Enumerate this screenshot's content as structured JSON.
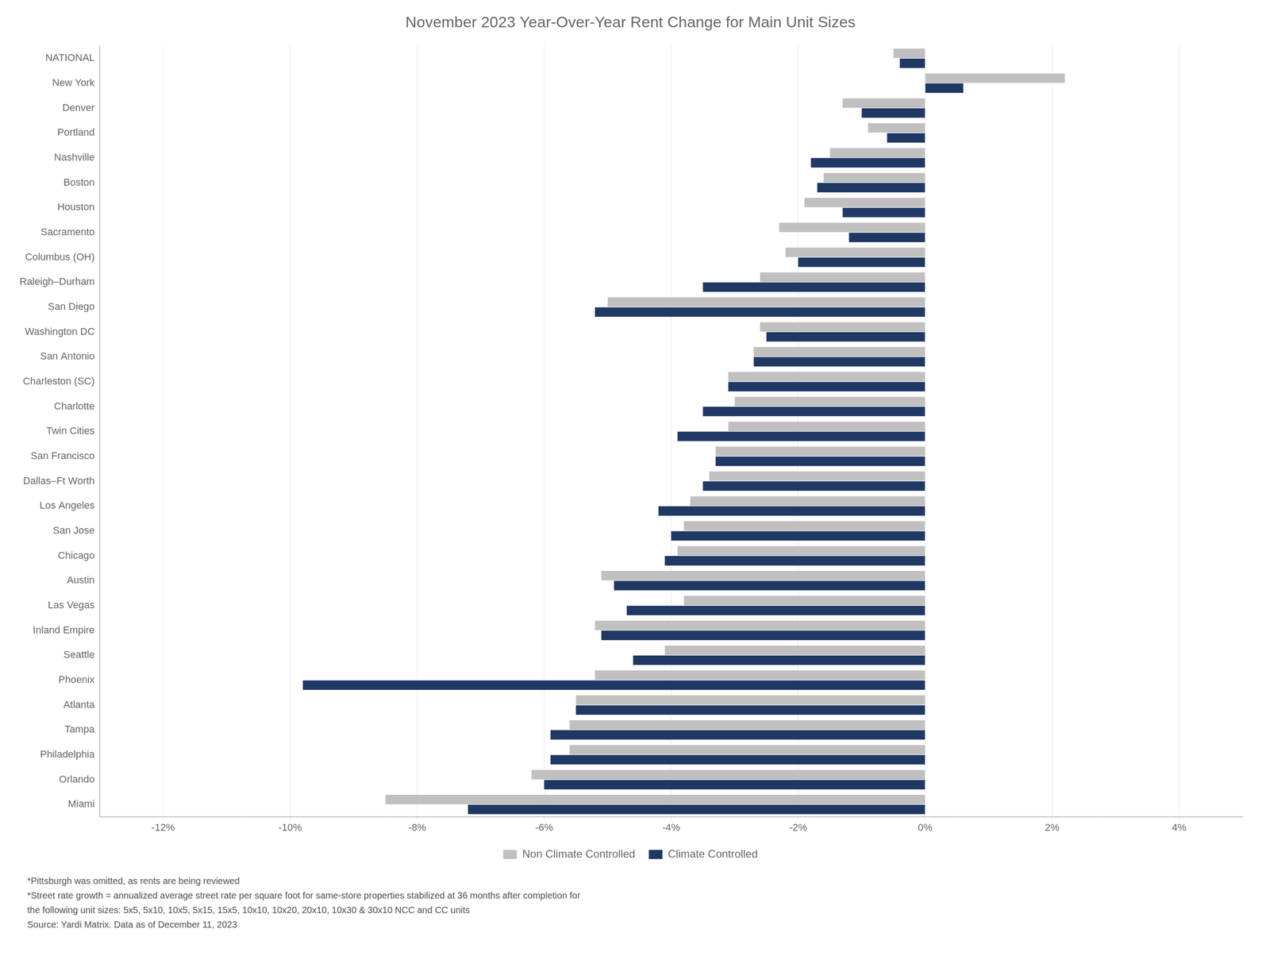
{
  "chart_data": {
    "type": "bar",
    "orientation": "horizontal",
    "title": "November 2023 Year-Over-Year Rent Change for Main Unit Sizes",
    "categories": [
      "NATIONAL",
      "New York",
      "Denver",
      "Portland",
      "Nashville",
      "Boston",
      "Houston",
      "Sacramento",
      "Columbus (OH)",
      "Raleigh–Durham",
      "San Diego",
      "Washington DC",
      "San Antonio",
      "Charleston (SC)",
      "Charlotte",
      "Twin Cities",
      "San Francisco",
      "Dallas–Ft Worth",
      "Los Angeles",
      "San Jose",
      "Chicago",
      "Austin",
      "Las Vegas",
      "Inland Empire",
      "Seattle",
      "Phoenix",
      "Atlanta",
      "Tampa",
      "Philadelphia",
      "Orlando",
      "Miami"
    ],
    "series": [
      {
        "name": "Non Climate Controlled",
        "color": "#c0c0c0",
        "values": [
          -0.5,
          2.2,
          -1.3,
          -0.9,
          -1.5,
          -1.6,
          -1.9,
          -2.3,
          -2.2,
          -2.6,
          -5.0,
          -2.6,
          -2.7,
          -3.1,
          -3.0,
          -3.1,
          -3.3,
          -3.4,
          -3.7,
          -3.8,
          -3.9,
          -5.1,
          -3.8,
          -5.2,
          -4.1,
          -5.2,
          -5.5,
          -5.6,
          -5.6,
          -6.2,
          -8.5
        ]
      },
      {
        "name": "Climate Controlled",
        "color": "#1f3864",
        "values": [
          -0.4,
          0.6,
          -1.0,
          -0.6,
          -1.8,
          -1.7,
          -1.3,
          -1.2,
          -2.0,
          -3.5,
          -5.2,
          -2.5,
          -2.7,
          -3.1,
          -3.5,
          -3.9,
          -3.3,
          -3.5,
          -4.2,
          -4.0,
          -4.1,
          -4.9,
          -4.7,
          -5.1,
          -4.6,
          -9.8,
          -5.5,
          -5.9,
          -5.9,
          -6.0,
          -7.2
        ]
      }
    ],
    "xlim": [
      -13,
      5
    ],
    "xticks": [
      {
        "value": -12,
        "label": "-12%"
      },
      {
        "value": -10,
        "label": "-10%"
      },
      {
        "value": -8,
        "label": "-8%"
      },
      {
        "value": -6,
        "label": "-6%"
      },
      {
        "value": -4,
        "label": "-4%"
      },
      {
        "value": -2,
        "label": "-2%"
      },
      {
        "value": 0,
        "label": "0%"
      },
      {
        "value": 2,
        "label": "2%"
      },
      {
        "value": 4,
        "label": "4%"
      }
    ],
    "grid": true,
    "legend": "bottom",
    "footnote": "*Pittsburgh was omitted, as rents are being reviewed\n*Street rate growth = annualized average street rate per square foot for same-store properties stabilized at 36 months after completion for\nthe following unit sizes: 5x5, 5x10, 10x5, 5x15, 15x5, 10x10, 10x20, 20x10, 10x30 & 30x10 NCC and CC units\nSource: Yardi Matrix. Data as of December 11, 2023"
  }
}
